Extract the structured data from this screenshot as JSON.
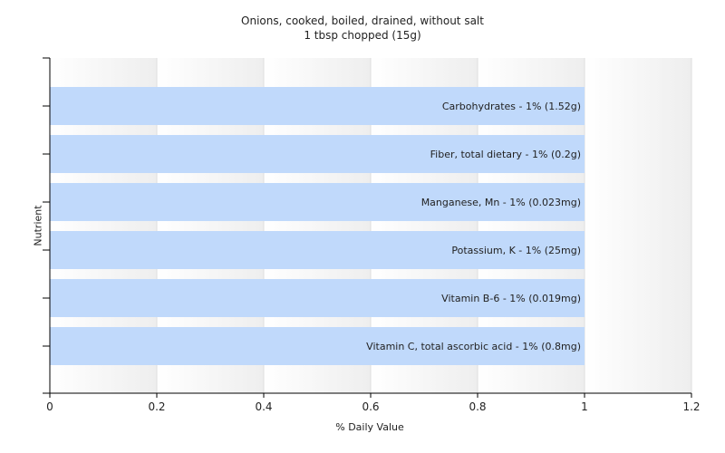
{
  "chart_data": {
    "type": "bar",
    "orientation": "horizontal",
    "title": "Onions, cooked, boiled, drained, without salt",
    "subtitle": "1 tbsp chopped (15g)",
    "xlabel": "% Daily Value",
    "ylabel": "Nutrient",
    "xlim": [
      0,
      1.2
    ],
    "xticks": [
      "0",
      "0.2",
      "0.4",
      "0.6",
      "0.8",
      "1",
      "1.2"
    ],
    "grid": true,
    "bar_color": "#c0d9fb",
    "categories": [
      "Carbohydrates",
      "Fiber, total dietary",
      "Manganese, Mn",
      "Potassium, K",
      "Vitamin B-6",
      "Vitamin C, total ascorbic acid"
    ],
    "values": [
      1,
      1,
      1,
      1,
      1,
      1
    ],
    "labels": [
      "Carbohydrates - 1% (1.52g)",
      "Fiber, total dietary - 1% (0.2g)",
      "Manganese, Mn - 1% (0.023mg)",
      "Potassium, K - 1% (25mg)",
      "Vitamin B-6 - 1% (0.019mg)",
      "Vitamin C, total ascorbic acid - 1% (0.8mg)"
    ]
  }
}
